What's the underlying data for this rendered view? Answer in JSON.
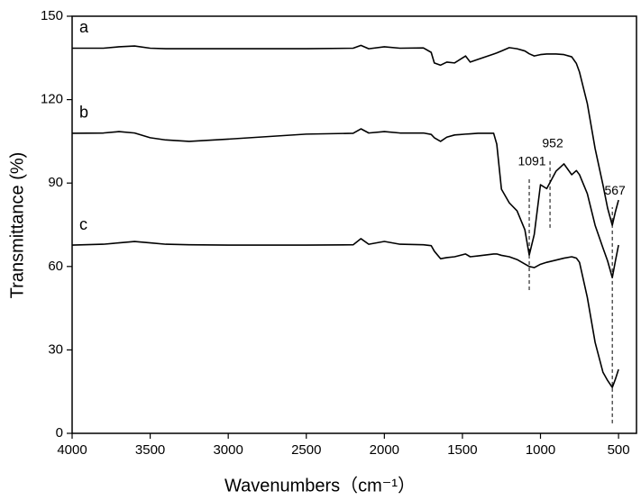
{
  "chart_data": {
    "type": "line",
    "xlabel": "Wavenumbers（cm⁻¹）",
    "ylabel": "Transmittance (%)",
    "x": [
      4000,
      3800,
      3700,
      3600,
      3500,
      3400,
      3250,
      3000,
      2500,
      2200,
      2150,
      2100,
      2000,
      1900,
      1750,
      1700,
      1680,
      1640,
      1600,
      1550,
      1480,
      1450,
      1400,
      1300,
      1280,
      1250,
      1200,
      1150,
      1100,
      1072,
      1040,
      1000,
      960,
      900,
      850,
      800,
      770,
      750,
      700,
      650,
      600,
      570,
      540,
      520,
      500
    ],
    "series": [
      {
        "name": "a",
        "color": "#000000",
        "values": [
          138.5,
          138.5,
          139,
          139.3,
          138.5,
          138.3,
          138.3,
          138.3,
          138.3,
          138.5,
          139.5,
          138.3,
          139,
          138.5,
          138.6,
          137,
          133.2,
          132.4,
          133.5,
          133.2,
          135.7,
          133.5,
          134.5,
          136.4,
          136.8,
          137.5,
          138.7,
          138.3,
          137.5,
          136.5,
          135.7,
          136.2,
          136.4,
          136.4,
          136.2,
          135.4,
          133,
          129.9,
          118.6,
          102.4,
          89.4,
          81,
          74.8,
          79.7,
          83.9
        ]
      },
      {
        "name": "b",
        "color": "#000000",
        "values": [
          107.9,
          108,
          108.5,
          108,
          106.3,
          105.5,
          105,
          105.8,
          107.6,
          107.9,
          109.5,
          108,
          108.5,
          108,
          108,
          107.5,
          106.3,
          105,
          106.5,
          107.3,
          107.6,
          107.7,
          107.9,
          107.9,
          104,
          87.8,
          82.9,
          80,
          73.2,
          64.1,
          71.5,
          89.4,
          88,
          94.3,
          96.9,
          93,
          94.5,
          93,
          86.2,
          74.8,
          66.7,
          62,
          56,
          62,
          67.7
        ]
      },
      {
        "name": "c",
        "color": "#000000",
        "values": [
          67.7,
          68,
          68.5,
          69,
          68.5,
          68,
          67.8,
          67.7,
          67.7,
          67.8,
          70,
          68,
          69,
          68,
          67.8,
          67.5,
          65.5,
          62.8,
          63.2,
          63.5,
          64.5,
          63.5,
          63.8,
          64.5,
          64.5,
          64,
          63.5,
          62.5,
          60.9,
          60,
          59.6,
          60.8,
          61.5,
          62.3,
          63,
          63.5,
          63,
          61.5,
          48.9,
          32.7,
          22,
          19,
          16.5,
          19.5,
          23
        ]
      }
    ],
    "markers": [
      {
        "label": "1091",
        "x": 1072,
        "y": [
          51.5,
          91.7
        ]
      },
      {
        "label": "952",
        "x": 939,
        "y": [
          73.9,
          98.2
        ]
      },
      {
        "label": "567",
        "x": 540,
        "y": [
          3.6,
          81.3
        ]
      }
    ],
    "xlim": [
      4000,
      385
    ],
    "ylim": [
      0,
      150
    ],
    "xticks": [
      4000,
      3500,
      3000,
      2500,
      2000,
      1500,
      1000,
      500
    ],
    "yticks": [
      0,
      30,
      60,
      90,
      120,
      150
    ]
  }
}
